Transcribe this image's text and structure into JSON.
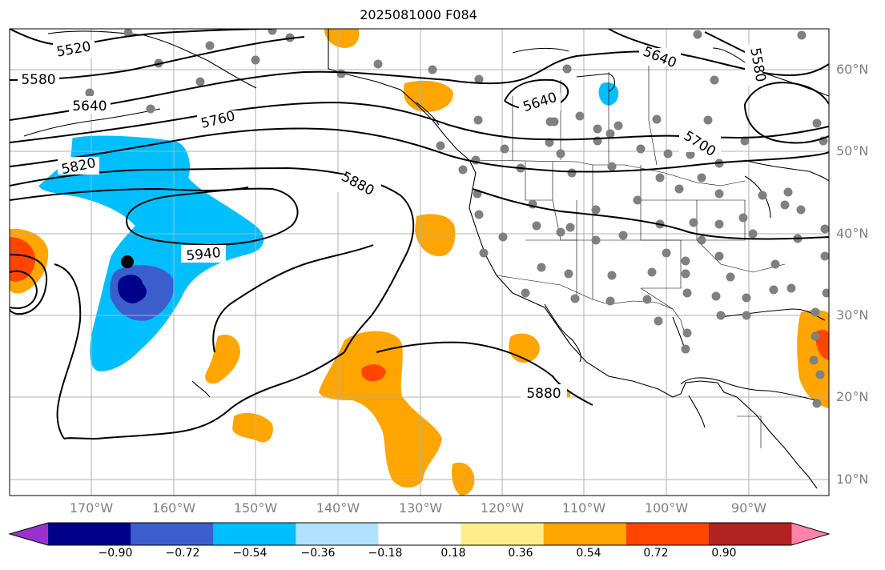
{
  "title": "2025081000 F084",
  "contour_labels": [
    "5520",
    "5580",
    "5640",
    "5760",
    "5820",
    "5880",
    "5940",
    "5640",
    "5640",
    "5700",
    "5580",
    "5880"
  ],
  "lat_labels": [
    "60°N",
    "50°N",
    "40°N",
    "30°N",
    "20°N",
    "10°N"
  ],
  "lon_labels": [
    "170°W",
    "160°W",
    "150°W",
    "140°W",
    "130°W",
    "120°W",
    "110°W",
    "100°W",
    "90°W"
  ],
  "colorbar": {
    "ticks": [
      "−0.90",
      "−0.72",
      "−0.54",
      "−0.36",
      "−0.18",
      "0.18",
      "0.36",
      "0.54",
      "0.72",
      "0.90"
    ],
    "colors": [
      "#9932cc",
      "#00008b",
      "#3a5fcd",
      "#00bfff",
      "#b0e2ff",
      "#ffffff",
      "#ffec8b",
      "#ffa500",
      "#ff4500",
      "#b22222",
      "#ff82ab"
    ]
  },
  "colors": {
    "grid": "#b0b0b0",
    "contour": "#000000",
    "station": "#808080",
    "marker": "#000000"
  }
}
